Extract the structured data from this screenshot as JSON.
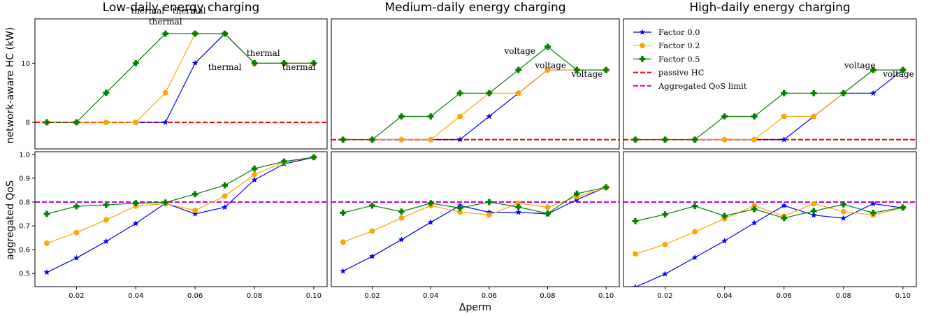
{
  "colors": {
    "factor_0_0": "#0000ff",
    "factor_0_2": "#ffa500",
    "factor_0_5": "#008000",
    "passive_hc": "#ff0000",
    "qos_limit": "#cc00cc"
  },
  "chart_data": [
    {
      "type": "line",
      "title": "Low-daily energy charging",
      "xlabel": "",
      "ylabel": "network-aware HC (kW)",
      "x": [
        0.01,
        0.02,
        0.03,
        0.04,
        0.05,
        0.06,
        0.07,
        0.08,
        0.09,
        0.1
      ],
      "xlim": [
        0.006,
        0.1045
      ],
      "ylim": [
        7.1,
        11.5
      ],
      "yticks": [
        8,
        10
      ],
      "ytick_labels": [
        "8",
        "10"
      ],
      "grid": false,
      "series": [
        {
          "name": "Factor 0.0",
          "values": [
            8,
            8,
            8,
            8,
            8,
            10,
            11,
            10,
            10,
            10
          ]
        },
        {
          "name": "Factor 0.2",
          "values": [
            8,
            8,
            8,
            8,
            9,
            11,
            11,
            10,
            10,
            10
          ]
        },
        {
          "name": "Factor 0.5",
          "values": [
            8,
            8,
            9,
            10,
            11,
            11,
            11,
            10,
            10,
            10
          ]
        }
      ],
      "hline": {
        "name": "passive HC",
        "value": 8
      },
      "annotations": [
        {
          "text": "thermal",
          "x": 0.044,
          "y": 11.68
        },
        {
          "text": "thermal",
          "x": 0.05,
          "y": 11.31
        },
        {
          "text": "thermal",
          "x": 0.058,
          "y": 11.68
        },
        {
          "text": "thermal",
          "x": 0.083,
          "y": 10.25
        },
        {
          "text": "thermal",
          "x": 0.07,
          "y": 9.77
        },
        {
          "text": "thermal",
          "x": 0.095,
          "y": 9.77
        }
      ]
    },
    {
      "type": "line",
      "title": "Medium-daily energy charging",
      "xlabel": "",
      "ylabel": "",
      "x": [
        0.01,
        0.02,
        0.03,
        0.04,
        0.05,
        0.06,
        0.07,
        0.08,
        0.09,
        0.1
      ],
      "xlim": [
        0.006,
        0.1045
      ],
      "ylim": [
        2.6,
        8.2
      ],
      "yticks": [],
      "ytick_labels": [],
      "grid": false,
      "series": [
        {
          "name": "Factor 0.0",
          "values": [
            3,
            3,
            3,
            3,
            3,
            4,
            5,
            6,
            6,
            6
          ]
        },
        {
          "name": "Factor 0.2",
          "values": [
            3,
            3,
            3,
            3,
            4,
            5,
            5,
            6,
            6,
            6
          ]
        },
        {
          "name": "Factor 0.5",
          "values": [
            3,
            3,
            4,
            4,
            5,
            5,
            6,
            7,
            6,
            6
          ]
        }
      ],
      "hline": {
        "name": "passive HC",
        "value": 3
      },
      "annotations": [
        {
          "text": "voltage",
          "x": 0.0705,
          "y": 6.7
        },
        {
          "text": "voltage",
          "x": 0.081,
          "y": 6.07
        },
        {
          "text": "voltage",
          "x": 0.0935,
          "y": 5.7
        }
      ]
    },
    {
      "type": "line",
      "title": "High-daily energy charging",
      "xlabel": "",
      "ylabel": "",
      "x": [
        0.01,
        0.02,
        0.03,
        0.04,
        0.05,
        0.06,
        0.07,
        0.08,
        0.09,
        0.1
      ],
      "xlim": [
        0.006,
        0.1045
      ],
      "ylim": [
        2.6,
        8.2
      ],
      "yticks": [],
      "ytick_labels": [],
      "grid": false,
      "series": [
        {
          "name": "Factor 0.0",
          "values": [
            3,
            3,
            3,
            3,
            3,
            3,
            4,
            5,
            5,
            6
          ]
        },
        {
          "name": "Factor 0.2",
          "values": [
            3,
            3,
            3,
            3,
            3,
            4,
            4,
            5,
            6,
            6
          ]
        },
        {
          "name": "Factor 0.5",
          "values": [
            3,
            3,
            3,
            4,
            4,
            5,
            5,
            5,
            6,
            6
          ]
        }
      ],
      "hline": {
        "name": "passive HC",
        "value": 3
      },
      "annotations": [
        {
          "text": "voltage",
          "x": 0.0855,
          "y": 6.07
        },
        {
          "text": "voltage",
          "x": 0.0985,
          "y": 5.7
        }
      ],
      "legend": {
        "position": "upper-left",
        "entries": [
          {
            "label": "Factor 0.0",
            "color": "#0000ff",
            "style": "line",
            "marker": "star"
          },
          {
            "label": "Factor 0.2",
            "color": "#ffa500",
            "style": "line",
            "marker": "circle"
          },
          {
            "label": "Factor 0.5",
            "color": "#008000",
            "style": "line",
            "marker": "plus"
          },
          {
            "label": "passive HC",
            "color": "#ff0000",
            "style": "dashed",
            "marker": "none"
          },
          {
            "label": "Aggregated QoS limit",
            "color": "#cc00cc",
            "style": "dashed",
            "marker": "none"
          }
        ]
      }
    },
    {
      "type": "line",
      "title": "",
      "xlabel": "",
      "ylabel": "aggregated QoS",
      "x": [
        0.01,
        0.02,
        0.03,
        0.04,
        0.05,
        0.06,
        0.07,
        0.08,
        0.09,
        0.1
      ],
      "xlim": [
        0.006,
        0.1045
      ],
      "ylim": [
        0.445,
        1.011
      ],
      "yticks": [
        0.5,
        0.6,
        0.7,
        0.8,
        0.9,
        1.0
      ],
      "ytick_labels": [
        "0.5",
        "0.6",
        "0.7",
        "0.8",
        "0.9",
        "1.0"
      ],
      "xticks": [
        0.02,
        0.04,
        0.06,
        0.08,
        0.1
      ],
      "xtick_labels": [
        "0.02",
        "0.04",
        "0.06",
        "0.08",
        "0.10"
      ],
      "grid": false,
      "series": [
        {
          "name": "Factor 0.0",
          "values": [
            0.505,
            0.565,
            0.635,
            0.71,
            0.795,
            0.75,
            0.778,
            0.893,
            0.96,
            0.987
          ]
        },
        {
          "name": "Factor 0.2",
          "values": [
            0.627,
            0.672,
            0.725,
            0.783,
            0.793,
            0.765,
            0.825,
            0.915,
            0.967,
            0.988
          ]
        },
        {
          "name": "Factor 0.5",
          "values": [
            0.75,
            0.782,
            0.788,
            0.795,
            0.798,
            0.833,
            0.87,
            0.94,
            0.97,
            0.988
          ]
        }
      ],
      "hline": {
        "name": "Aggregated QoS limit",
        "value": 0.8
      }
    },
    {
      "type": "line",
      "title": "",
      "xlabel": "Δperm",
      "ylabel": "",
      "x": [
        0.01,
        0.02,
        0.03,
        0.04,
        0.05,
        0.06,
        0.07,
        0.08,
        0.09,
        0.1
      ],
      "xlim": [
        0.006,
        0.1045
      ],
      "ylim": [
        0.445,
        1.011
      ],
      "yticks": [],
      "ytick_labels": [],
      "xticks": [
        0.02,
        0.04,
        0.06,
        0.08,
        0.1
      ],
      "xtick_labels": [
        "0.02",
        "0.04",
        "0.06",
        "0.08",
        "0.10"
      ],
      "grid": false,
      "series": [
        {
          "name": "Factor 0.0",
          "values": [
            0.51,
            0.572,
            0.642,
            0.715,
            0.785,
            0.757,
            0.757,
            0.75,
            0.81,
            0.862
          ]
        },
        {
          "name": "Factor 0.2",
          "values": [
            0.632,
            0.678,
            0.733,
            0.785,
            0.758,
            0.746,
            0.795,
            0.778,
            0.822,
            0.86
          ]
        },
        {
          "name": "Factor 0.5",
          "values": [
            0.755,
            0.785,
            0.76,
            0.795,
            0.775,
            0.8,
            0.779,
            0.752,
            0.835,
            0.862
          ]
        }
      ],
      "hline": {
        "name": "Aggregated QoS limit",
        "value": 0.8
      }
    },
    {
      "type": "line",
      "title": "",
      "xlabel": "",
      "ylabel": "",
      "x": [
        0.01,
        0.02,
        0.03,
        0.04,
        0.05,
        0.06,
        0.07,
        0.08,
        0.09,
        0.1
      ],
      "xlim": [
        0.006,
        0.1045
      ],
      "ylim": [
        0.445,
        1.011
      ],
      "yticks": [],
      "ytick_labels": [],
      "xticks": [
        0.02,
        0.04,
        0.06,
        0.08,
        0.1
      ],
      "xtick_labels": [
        "0.02",
        "0.04",
        "0.06",
        "0.08",
        "0.10"
      ],
      "grid": false,
      "series": [
        {
          "name": "Factor 0.0",
          "values": [
            0.443,
            0.498,
            0.567,
            0.637,
            0.712,
            0.785,
            0.745,
            0.732,
            0.793,
            0.775
          ]
        },
        {
          "name": "Factor 0.2",
          "values": [
            0.582,
            0.622,
            0.675,
            0.73,
            0.785,
            0.74,
            0.793,
            0.76,
            0.745,
            0.777
          ]
        },
        {
          "name": "Factor 0.5",
          "values": [
            0.72,
            0.748,
            0.783,
            0.742,
            0.77,
            0.733,
            0.762,
            0.79,
            0.755,
            0.777
          ]
        }
      ],
      "hline": {
        "name": "Aggregated QoS limit",
        "value": 0.8
      }
    }
  ]
}
